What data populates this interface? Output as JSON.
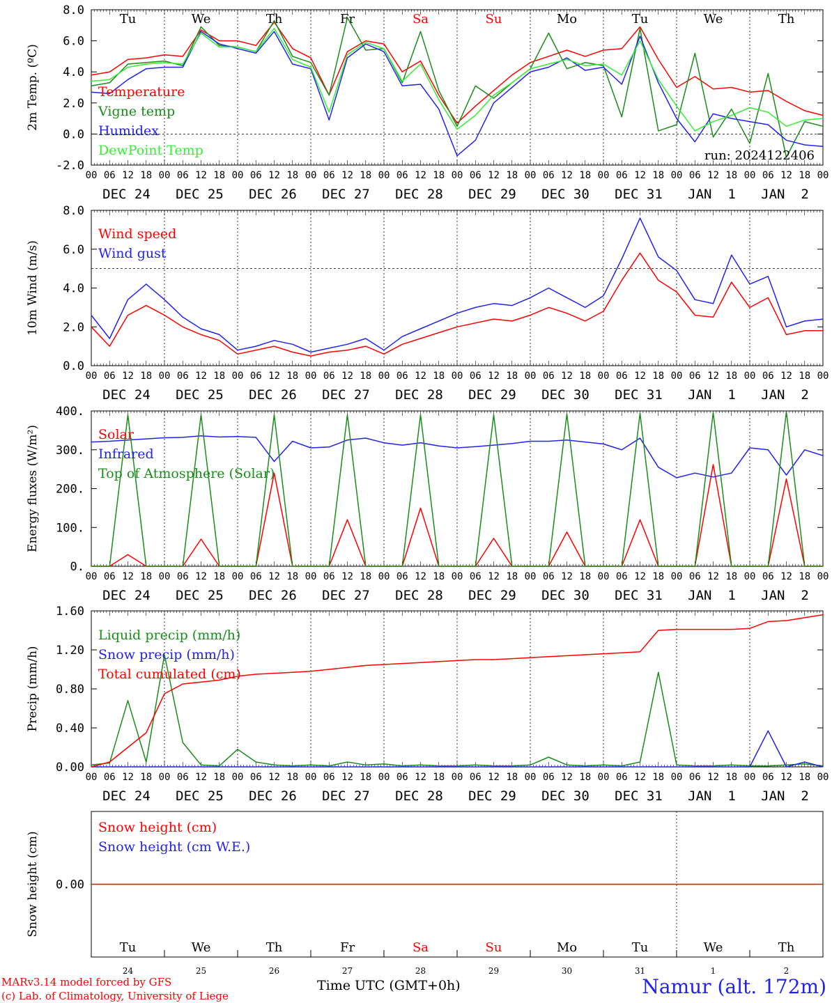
{
  "page": {
    "credit_line1": "MARv3.14 model forced by GFS",
    "credit_line2": "(c) Lab. of Climatology, University of Liege",
    "station": "Namur (alt. 172m)",
    "time_label": "Time UTC (GMT+0h)",
    "run_label": "run: 2024122406"
  },
  "colors": {
    "red": "#ff0000",
    "green": "#1a8c1a",
    "blue": "#2222ee",
    "lightgreen": "#33ee33",
    "axis": "#000000"
  },
  "axis_common": {
    "hour_ticks": [
      "00",
      "06",
      "12",
      "18",
      "00",
      "06",
      "12",
      "18",
      "00",
      "06",
      "12",
      "18",
      "00",
      "06",
      "12",
      "18",
      "00",
      "06",
      "12",
      "18",
      "00",
      "06",
      "12",
      "18",
      "00",
      "06",
      "12",
      "18",
      "00",
      "06",
      "12",
      "18",
      "00",
      "06",
      "12",
      "18",
      "00",
      "06",
      "12",
      "18",
      "00"
    ],
    "date_labels": [
      "DEC 24",
      "DEC 25",
      "DEC 26",
      "DEC 27",
      "DEC 28",
      "DEC 29",
      "DEC 30",
      "DEC 31",
      "JAN  1",
      "JAN  2"
    ],
    "weekday_labels": [
      {
        "text": "Tu",
        "color": "#000000"
      },
      {
        "text": "We",
        "color": "#000000"
      },
      {
        "text": "Th",
        "color": "#000000"
      },
      {
        "text": "Fr",
        "color": "#000000"
      },
      {
        "text": "Sa",
        "color": "#ff0000"
      },
      {
        "text": "Su",
        "color": "#ff0000"
      },
      {
        "text": "Mo",
        "color": "#000000"
      },
      {
        "text": "Tu",
        "color": "#000000"
      },
      {
        "text": "We",
        "color": "#000000"
      },
      {
        "text": "Th",
        "color": "#000000"
      }
    ],
    "day_numbers": [
      "24",
      "25",
      "26",
      "27",
      "28",
      "29",
      "30",
      "31",
      "1",
      "2"
    ],
    "x_range_hours": [
      0,
      240
    ]
  },
  "chart_data": [
    {
      "type": "line",
      "ylabel": "2m Temp. (ºC)",
      "ylim": [
        -2,
        8
      ],
      "yticks": [
        "8.0",
        "6.0",
        "4.0",
        "2.0",
        "0.0",
        "-2.0"
      ],
      "ytick_values": [
        8,
        6,
        4,
        2,
        0,
        -2
      ],
      "dashed_y": 0,
      "legend": [
        "Temperature",
        "Vigne temp",
        "Humidex",
        "DewPoint Temp"
      ],
      "x": [
        0,
        6,
        12,
        18,
        24,
        30,
        36,
        42,
        48,
        54,
        60,
        66,
        72,
        78,
        84,
        90,
        96,
        102,
        108,
        114,
        120,
        126,
        132,
        138,
        144,
        150,
        156,
        162,
        168,
        174,
        180,
        186,
        192,
        198,
        204,
        210,
        216,
        222,
        228,
        234,
        240
      ],
      "series": [
        {
          "name": "Temperature",
          "color_key": "red",
          "values": [
            3.8,
            4.0,
            4.8,
            4.9,
            5.1,
            5.0,
            6.7,
            6.0,
            6.0,
            5.7,
            7.2,
            5.5,
            4.9,
            2.5,
            5.3,
            6.0,
            5.8,
            4.0,
            4.7,
            2.5,
            0.7,
            1.8,
            2.8,
            3.8,
            4.6,
            5.0,
            5.4,
            5.0,
            5.4,
            5.5,
            6.9,
            4.8,
            3.0,
            3.7,
            2.9,
            3.0,
            2.7,
            2.8,
            2.1,
            1.5,
            1.2
          ]
        },
        {
          "name": "Vigne temp",
          "color_key": "green",
          "values": [
            3.1,
            3.3,
            4.5,
            4.6,
            4.7,
            4.4,
            6.9,
            5.7,
            5.6,
            5.3,
            7.3,
            5.0,
            4.6,
            2.5,
            7.5,
            5.4,
            5.5,
            3.3,
            6.6,
            2.8,
            0.5,
            3.1,
            2.3,
            3.3,
            4.2,
            6.5,
            4.2,
            4.6,
            4.4,
            1.1,
            6.8,
            0.2,
            0.6,
            5.2,
            -0.2,
            1.6,
            -0.6,
            3.9,
            -1.5,
            0.8,
            0.5
          ]
        },
        {
          "name": "Humidex",
          "color_key": "blue",
          "values": [
            2.7,
            2.6,
            3.5,
            4.2,
            4.3,
            4.3,
            6.6,
            5.8,
            5.5,
            5.2,
            6.6,
            4.5,
            4.2,
            0.9,
            4.9,
            5.8,
            5.3,
            3.1,
            3.2,
            1.6,
            -1.4,
            -0.4,
            2.0,
            3.0,
            4.0,
            4.3,
            4.9,
            4.1,
            4.3,
            3.2,
            6.3,
            3.3,
            1.0,
            -0.5,
            1.3,
            1.0,
            0.8,
            0.6,
            -0.4,
            -0.7,
            -0.8
          ]
        },
        {
          "name": "DewPoint Temp",
          "color_key": "lightgreen",
          "values": [
            3.4,
            3.5,
            4.3,
            4.5,
            4.6,
            4.5,
            6.5,
            5.6,
            5.6,
            5.3,
            6.8,
            4.8,
            4.3,
            1.4,
            5.1,
            5.9,
            5.5,
            3.4,
            4.5,
            2.2,
            0.3,
            1.2,
            2.5,
            3.3,
            4.2,
            4.5,
            4.8,
            4.4,
            4.5,
            3.8,
            6.0,
            3.5,
            1.8,
            0.2,
            0.8,
            1.2,
            1.7,
            1.4,
            0.5,
            0.9,
            1.0
          ]
        }
      ]
    },
    {
      "type": "line",
      "ylabel": "10m Wind (m/s)",
      "ylim": [
        0,
        8
      ],
      "yticks": [
        "8.0",
        "6.0",
        "4.0",
        "2.0",
        "0.0"
      ],
      "ytick_values": [
        8,
        6,
        4,
        2,
        0
      ],
      "dashed_y": 5,
      "legend": [
        "Wind speed",
        "Wind gust"
      ],
      "x": [
        0,
        6,
        12,
        18,
        24,
        30,
        36,
        42,
        48,
        54,
        60,
        66,
        72,
        78,
        84,
        90,
        96,
        102,
        108,
        114,
        120,
        126,
        132,
        138,
        144,
        150,
        156,
        162,
        168,
        174,
        180,
        186,
        192,
        198,
        204,
        210,
        216,
        222,
        228,
        234,
        240
      ],
      "series": [
        {
          "name": "Wind speed",
          "color_key": "red",
          "values": [
            2.0,
            1.0,
            2.6,
            3.1,
            2.6,
            2.0,
            1.6,
            1.3,
            0.6,
            0.8,
            1.0,
            0.7,
            0.5,
            0.7,
            0.8,
            1.0,
            0.6,
            1.1,
            1.4,
            1.7,
            2.0,
            2.2,
            2.4,
            2.3,
            2.6,
            3.0,
            2.7,
            2.3,
            2.8,
            4.4,
            5.8,
            4.4,
            3.8,
            2.6,
            2.5,
            4.3,
            3.0,
            3.5,
            1.6,
            1.8,
            1.8
          ]
        },
        {
          "name": "Wind gust",
          "color_key": "blue",
          "values": [
            2.6,
            1.4,
            3.4,
            4.2,
            3.4,
            2.5,
            1.9,
            1.6,
            0.8,
            1.0,
            1.3,
            1.1,
            0.7,
            0.9,
            1.1,
            1.4,
            0.8,
            1.5,
            1.9,
            2.3,
            2.7,
            3.0,
            3.2,
            3.1,
            3.5,
            4.0,
            3.5,
            3.0,
            3.6,
            5.5,
            7.6,
            5.6,
            4.9,
            3.4,
            3.2,
            5.7,
            4.2,
            4.6,
            2.0,
            2.3,
            2.4
          ]
        }
      ]
    },
    {
      "type": "line",
      "ylabel": "Energy fluxes (W/m²)",
      "ylim": [
        0,
        400
      ],
      "yticks": [
        "400.",
        "300.",
        "200.",
        "100.",
        "0."
      ],
      "ytick_values": [
        400,
        300,
        200,
        100,
        0
      ],
      "legend": [
        "Solar",
        "Infrared",
        "Top of Atmosphere (Solar)"
      ],
      "x": [
        0,
        6,
        12,
        18,
        24,
        30,
        36,
        42,
        48,
        54,
        60,
        66,
        72,
        78,
        84,
        90,
        96,
        102,
        108,
        114,
        120,
        126,
        132,
        138,
        144,
        150,
        156,
        162,
        168,
        174,
        180,
        186,
        192,
        198,
        204,
        210,
        216,
        222,
        228,
        234,
        240
      ],
      "series": [
        {
          "name": "Solar",
          "color_key": "red",
          "values": [
            0,
            0,
            30,
            0,
            0,
            0,
            70,
            0,
            0,
            0,
            240,
            0,
            0,
            0,
            120,
            0,
            0,
            0,
            150,
            0,
            0,
            0,
            72,
            0,
            0,
            0,
            88,
            0,
            0,
            0,
            120,
            0,
            0,
            0,
            262,
            0,
            0,
            0,
            225,
            0,
            0
          ]
        },
        {
          "name": "Infrared",
          "color_key": "blue",
          "values": [
            320,
            322,
            325,
            328,
            331,
            332,
            336,
            333,
            334,
            332,
            270,
            322,
            305,
            307,
            325,
            330,
            318,
            312,
            318,
            310,
            305,
            308,
            312,
            316,
            322,
            322,
            325,
            320,
            315,
            300,
            330,
            255,
            228,
            240,
            230,
            240,
            305,
            300,
            235,
            300,
            285
          ]
        },
        {
          "name": "Top of Atmosphere (Solar)",
          "color_key": "green",
          "values": [
            0,
            0,
            390,
            0,
            0,
            0,
            390,
            0,
            0,
            0,
            390,
            0,
            0,
            0,
            390,
            0,
            0,
            0,
            390,
            0,
            0,
            0,
            390,
            0,
            0,
            0,
            392,
            0,
            0,
            0,
            394,
            0,
            0,
            0,
            396,
            0,
            0,
            0,
            398,
            0,
            0
          ]
        }
      ]
    },
    {
      "type": "line",
      "ylabel": "Precip (mm/h)",
      "ylim": [
        0,
        1.6
      ],
      "yticks": [
        "1.60",
        "1.20",
        "0.80",
        "0.40",
        "0.00"
      ],
      "ytick_values": [
        1.6,
        1.2,
        0.8,
        0.4,
        0.0
      ],
      "legend": [
        "Liquid precip (mm/h)",
        "Snow precip (mm/h)",
        "Total cumulated (cm)"
      ],
      "x": [
        0,
        6,
        12,
        18,
        24,
        30,
        36,
        42,
        48,
        54,
        60,
        66,
        72,
        78,
        84,
        90,
        96,
        102,
        108,
        114,
        120,
        126,
        132,
        138,
        144,
        150,
        156,
        162,
        168,
        174,
        180,
        186,
        192,
        198,
        204,
        210,
        216,
        222,
        228,
        234,
        240
      ],
      "series": [
        {
          "name": "Liquid precip (mm/h)",
          "color_key": "green",
          "values": [
            0.02,
            0.04,
            0.68,
            0.05,
            1.15,
            0.25,
            0.02,
            0.01,
            0.18,
            0.05,
            0.02,
            0.01,
            0.02,
            0.01,
            0.05,
            0.02,
            0.03,
            0.01,
            0.02,
            0.01,
            0.01,
            0.02,
            0.01,
            0.01,
            0.02,
            0.1,
            0.02,
            0.01,
            0.02,
            0.01,
            0.05,
            0.97,
            0.02,
            0.01,
            0.01,
            0.02,
            0.01,
            0.01,
            0.02,
            0.03,
            0.01
          ]
        },
        {
          "name": "Snow precip (mm/h)",
          "color_key": "blue",
          "values": [
            0,
            0,
            0,
            0,
            0,
            0,
            0,
            0,
            0,
            0,
            0,
            0,
            0,
            0,
            0,
            0,
            0,
            0,
            0,
            0,
            0,
            0,
            0,
            0,
            0,
            0,
            0,
            0,
            0,
            0,
            0,
            0,
            0,
            0,
            0,
            0,
            0,
            0.37,
            0,
            0.05,
            0
          ]
        },
        {
          "name": "Total cumulated (cm)",
          "color_key": "red",
          "values": [
            0.0,
            0.05,
            0.2,
            0.35,
            0.75,
            0.85,
            0.87,
            0.89,
            0.93,
            0.95,
            0.96,
            0.97,
            0.98,
            1.0,
            1.02,
            1.04,
            1.05,
            1.06,
            1.07,
            1.08,
            1.09,
            1.1,
            1.1,
            1.11,
            1.12,
            1.13,
            1.14,
            1.15,
            1.16,
            1.17,
            1.18,
            1.4,
            1.41,
            1.41,
            1.41,
            1.41,
            1.42,
            1.49,
            1.5,
            1.53,
            1.56
          ]
        }
      ]
    },
    {
      "type": "line",
      "ylabel": "Snow height (cm)",
      "ylim": [
        -1,
        1
      ],
      "yticks": [
        "0.00"
      ],
      "ytick_values": [
        0
      ],
      "legend": [
        "Snow height (cm)",
        "Snow height (cm W.E.)"
      ],
      "x": [
        0,
        240
      ],
      "series": [
        {
          "name": "Snow height (cm)",
          "color_key": "red",
          "values": [
            0,
            0
          ]
        }
      ]
    }
  ]
}
